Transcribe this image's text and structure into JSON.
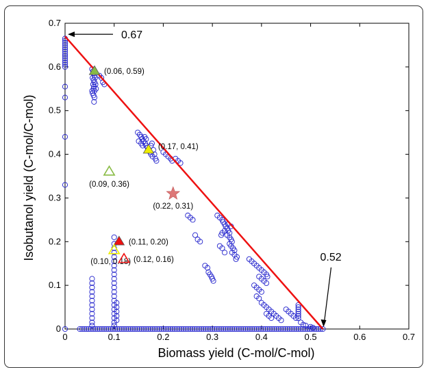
{
  "chart_data": {
    "type": "scatter",
    "xlabel": "Biomass yield (C-mol/C-mol)",
    "ylabel": "Isobutanol yield (C-mol/C-mol)",
    "xlim": [
      0,
      0.7
    ],
    "ylim": [
      0,
      0.7
    ],
    "xticks": [
      "0",
      "0.1",
      "0.2",
      "0.3",
      "0.4",
      "0.5",
      "0.6",
      "0.7"
    ],
    "yticks": [
      "0",
      "0.1",
      "0.2",
      "0.3",
      "0.4",
      "0.5",
      "0.6",
      "0.7"
    ],
    "grid": false,
    "frontier_line": {
      "x": [
        0,
        0.525
      ],
      "y": [
        0.67,
        0
      ],
      "color": "#ee1111"
    },
    "scatter_color": "#2222cc",
    "scatter_points": [
      [
        0,
        0.665
      ],
      [
        0,
        0.66
      ],
      [
        0,
        0.655
      ],
      [
        0,
        0.65
      ],
      [
        0,
        0.645
      ],
      [
        0,
        0.64
      ],
      [
        0,
        0.635
      ],
      [
        0,
        0.63
      ],
      [
        0,
        0.625
      ],
      [
        0,
        0.62
      ],
      [
        0,
        0.615
      ],
      [
        0,
        0.61
      ],
      [
        0,
        0.605
      ],
      [
        0,
        0.6
      ],
      [
        0,
        0.555
      ],
      [
        0,
        0.53
      ],
      [
        0,
        0.44
      ],
      [
        0,
        0.33
      ],
      [
        0,
        0.0
      ],
      [
        0.055,
        0.595
      ],
      [
        0.057,
        0.59
      ],
      [
        0.058,
        0.585
      ],
      [
        0.06,
        0.58
      ],
      [
        0.056,
        0.575
      ],
      [
        0.058,
        0.57
      ],
      [
        0.06,
        0.565
      ],
      [
        0.057,
        0.56
      ],
      [
        0.059,
        0.555
      ],
      [
        0.058,
        0.55
      ],
      [
        0.06,
        0.545
      ],
      [
        0.056,
        0.54
      ],
      [
        0.058,
        0.535
      ],
      [
        0.06,
        0.53
      ],
      [
        0.055,
        0.545
      ],
      [
        0.059,
        0.52
      ],
      [
        0.061,
        0.575
      ],
      [
        0.062,
        0.56
      ],
      [
        0.063,
        0.55
      ],
      [
        0.07,
        0.58
      ],
      [
        0.074,
        0.575
      ],
      [
        0.077,
        0.565
      ],
      [
        0.08,
        0.56
      ],
      [
        0.148,
        0.45
      ],
      [
        0.152,
        0.445
      ],
      [
        0.155,
        0.44
      ],
      [
        0.157,
        0.435
      ],
      [
        0.16,
        0.43
      ],
      [
        0.163,
        0.425
      ],
      [
        0.165,
        0.42
      ],
      [
        0.168,
        0.415
      ],
      [
        0.17,
        0.41
      ],
      [
        0.173,
        0.405
      ],
      [
        0.175,
        0.4
      ],
      [
        0.178,
        0.395
      ],
      [
        0.175,
        0.42
      ],
      [
        0.177,
        0.425
      ],
      [
        0.18,
        0.41
      ],
      [
        0.182,
        0.4
      ],
      [
        0.184,
        0.39
      ],
      [
        0.186,
        0.385
      ],
      [
        0.15,
        0.43
      ],
      [
        0.155,
        0.425
      ],
      [
        0.158,
        0.42
      ],
      [
        0.162,
        0.44
      ],
      [
        0.165,
        0.435
      ],
      [
        0.2,
        0.405
      ],
      [
        0.205,
        0.4
      ],
      [
        0.21,
        0.395
      ],
      [
        0.215,
        0.39
      ],
      [
        0.218,
        0.385
      ],
      [
        0.225,
        0.39
      ],
      [
        0.23,
        0.385
      ],
      [
        0.235,
        0.38
      ],
      [
        0.25,
        0.26
      ],
      [
        0.255,
        0.255
      ],
      [
        0.26,
        0.25
      ],
      [
        0.265,
        0.215
      ],
      [
        0.27,
        0.205
      ],
      [
        0.275,
        0.2
      ],
      [
        0.285,
        0.145
      ],
      [
        0.29,
        0.14
      ],
      [
        0.292,
        0.13
      ],
      [
        0.295,
        0.125
      ],
      [
        0.298,
        0.12
      ],
      [
        0.3,
        0.115
      ],
      [
        0.302,
        0.11
      ],
      [
        0.31,
        0.26
      ],
      [
        0.315,
        0.255
      ],
      [
        0.32,
        0.25
      ],
      [
        0.322,
        0.245
      ],
      [
        0.325,
        0.24
      ],
      [
        0.327,
        0.235
      ],
      [
        0.33,
        0.23
      ],
      [
        0.332,
        0.225
      ],
      [
        0.335,
        0.22
      ],
      [
        0.33,
        0.215
      ],
      [
        0.335,
        0.21
      ],
      [
        0.338,
        0.205
      ],
      [
        0.34,
        0.2
      ],
      [
        0.335,
        0.195
      ],
      [
        0.338,
        0.19
      ],
      [
        0.342,
        0.185
      ],
      [
        0.345,
        0.18
      ],
      [
        0.34,
        0.175
      ],
      [
        0.345,
        0.17
      ],
      [
        0.35,
        0.165
      ],
      [
        0.348,
        0.16
      ],
      [
        0.332,
        0.24
      ],
      [
        0.338,
        0.235
      ],
      [
        0.325,
        0.225
      ],
      [
        0.32,
        0.22
      ],
      [
        0.318,
        0.215
      ],
      [
        0.315,
        0.19
      ],
      [
        0.32,
        0.185
      ],
      [
        0.325,
        0.175
      ],
      [
        0.375,
        0.16
      ],
      [
        0.38,
        0.155
      ],
      [
        0.385,
        0.15
      ],
      [
        0.39,
        0.145
      ],
      [
        0.395,
        0.14
      ],
      [
        0.4,
        0.135
      ],
      [
        0.405,
        0.13
      ],
      [
        0.41,
        0.125
      ],
      [
        0.412,
        0.12
      ],
      [
        0.395,
        0.12
      ],
      [
        0.4,
        0.115
      ],
      [
        0.405,
        0.11
      ],
      [
        0.41,
        0.105
      ],
      [
        0.385,
        0.1
      ],
      [
        0.39,
        0.095
      ],
      [
        0.395,
        0.09
      ],
      [
        0.4,
        0.085
      ],
      [
        0.39,
        0.075
      ],
      [
        0.395,
        0.07
      ],
      [
        0.4,
        0.06
      ],
      [
        0.405,
        0.055
      ],
      [
        0.41,
        0.05
      ],
      [
        0.415,
        0.045
      ],
      [
        0.42,
        0.04
      ],
      [
        0.425,
        0.035
      ],
      [
        0.43,
        0.03
      ],
      [
        0.435,
        0.025
      ],
      [
        0.44,
        0.02
      ],
      [
        0.41,
        0.035
      ],
      [
        0.415,
        0.03
      ],
      [
        0.42,
        0.025
      ],
      [
        0.45,
        0.045
      ],
      [
        0.455,
        0.04
      ],
      [
        0.46,
        0.035
      ],
      [
        0.465,
        0.03
      ],
      [
        0.47,
        0.025
      ],
      [
        0.475,
        0.055
      ],
      [
        0.475,
        0.05
      ],
      [
        0.475,
        0.045
      ],
      [
        0.475,
        0.04
      ],
      [
        0.475,
        0.035
      ],
      [
        0.475,
        0.03
      ],
      [
        0.475,
        0.025
      ],
      [
        0.48,
        0.015
      ],
      [
        0.485,
        0.01
      ],
      [
        0.49,
        0.008
      ],
      [
        0.5,
        0.005
      ],
      [
        0.505,
        0.003
      ],
      [
        0.055,
        0.115
      ],
      [
        0.055,
        0.105
      ],
      [
        0.055,
        0.095
      ],
      [
        0.055,
        0.085
      ],
      [
        0.055,
        0.075
      ],
      [
        0.055,
        0.065
      ],
      [
        0.055,
        0.055
      ],
      [
        0.055,
        0.045
      ],
      [
        0.055,
        0.035
      ],
      [
        0.055,
        0.025
      ],
      [
        0.055,
        0.015
      ],
      [
        0.055,
        0.008
      ],
      [
        0.1,
        0.21
      ],
      [
        0.1,
        0.195
      ],
      [
        0.1,
        0.185
      ],
      [
        0.1,
        0.175
      ],
      [
        0.1,
        0.165
      ],
      [
        0.1,
        0.155
      ],
      [
        0.1,
        0.145
      ],
      [
        0.1,
        0.135
      ],
      [
        0.1,
        0.125
      ],
      [
        0.1,
        0.115
      ],
      [
        0.1,
        0.105
      ],
      [
        0.1,
        0.095
      ],
      [
        0.1,
        0.085
      ],
      [
        0.1,
        0.075
      ],
      [
        0.1,
        0.065
      ],
      [
        0.1,
        0.055
      ],
      [
        0.1,
        0.045
      ],
      [
        0.1,
        0.035
      ],
      [
        0.1,
        0.025
      ],
      [
        0.1,
        0.015
      ],
      [
        0.1,
        0.008
      ],
      [
        0.105,
        0.06
      ],
      [
        0.105,
        0.05
      ],
      [
        0.105,
        0.04
      ],
      [
        0.105,
        0.03
      ],
      [
        0.105,
        0.02
      ]
    ],
    "baseline": {
      "y": 0,
      "x_from": 0.03,
      "x_to": 0.525,
      "step": 0.0045
    },
    "markers": [
      {
        "x": 0.06,
        "y": 0.59,
        "shape": "triangle",
        "filled": true,
        "color": "#88bb44",
        "label": "(0.06, 0.59)",
        "label_pos": "right"
      },
      {
        "x": 0.17,
        "y": 0.41,
        "shape": "triangle",
        "filled": true,
        "color": "#eeee00",
        "label": "(0.17, 0.41)",
        "label_pos": "upper-right"
      },
      {
        "x": 0.09,
        "y": 0.36,
        "shape": "triangle",
        "filled": false,
        "color": "#88bb44",
        "label": "(0.09, 0.36)",
        "label_pos": "below"
      },
      {
        "x": 0.22,
        "y": 0.31,
        "shape": "star",
        "filled": true,
        "color": "#dd7777",
        "label": "(0.22, 0.31)",
        "label_pos": "below"
      },
      {
        "x": 0.11,
        "y": 0.2,
        "shape": "triangle",
        "filled": true,
        "color": "#ee1111",
        "label": "(0.11, 0.20)",
        "label_pos": "right"
      },
      {
        "x": 0.1,
        "y": 0.18,
        "shape": "triangle",
        "filled": false,
        "color": "#eeee00",
        "label": "(0.10, 0.18)",
        "label_pos": "lower-left"
      },
      {
        "x": 0.12,
        "y": 0.16,
        "shape": "triangle",
        "filled": false,
        "color": "#ee1111",
        "label": "(0.12, 0.16)",
        "label_pos": "right"
      }
    ],
    "callouts": [
      {
        "text": "0.67",
        "x": 0,
        "y": 0.67
      },
      {
        "text": "0.52",
        "x": 0.525,
        "y": 0
      }
    ]
  }
}
